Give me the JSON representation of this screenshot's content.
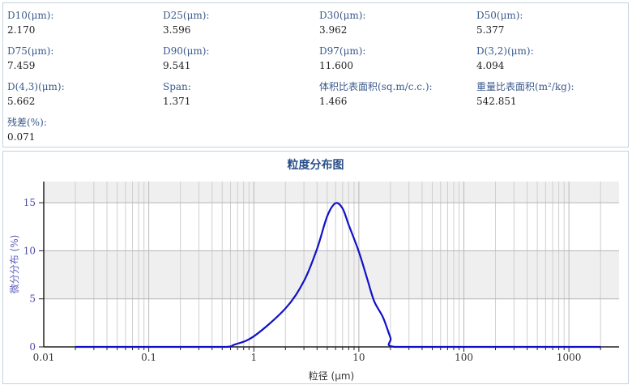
{
  "stats": [
    {
      "label": "D10(μm):",
      "value": "2.170"
    },
    {
      "label": "D25(μm):",
      "value": "3.596"
    },
    {
      "label": "D30(μm):",
      "value": "3.962"
    },
    {
      "label": "D50(μm):",
      "value": "5.377"
    },
    {
      "label": "D75(μm):",
      "value": "7.459"
    },
    {
      "label": "D90(μm):",
      "value": "9.541"
    },
    {
      "label": "D97(μm):",
      "value": "11.600"
    },
    {
      "label": "D(3,2)(μm):",
      "value": "4.094"
    },
    {
      "label": "D(4,3)(μm):",
      "value": "5.662"
    },
    {
      "label": "Span:",
      "value": "1.371"
    },
    {
      "label": "体积比表面积(sq.m/c.c.):",
      "value": "1.466"
    },
    {
      "label": "重量比表面积(m²/kg):",
      "value": "542.851"
    },
    {
      "label": "残差(%):",
      "value": "0.071"
    }
  ],
  "chart_data": {
    "type": "line",
    "title": "粒度分布图",
    "xlabel": "粒径 (μm)",
    "ylabel": "微分分布 (%)",
    "xscale": "log",
    "xlim": [
      0.01,
      3000
    ],
    "ylim": [
      0,
      17.2
    ],
    "xticks": [
      "0.01",
      "0.1",
      "1",
      "10",
      "100",
      "1000"
    ],
    "yticks": [
      "0",
      "5",
      "10",
      "15"
    ],
    "grid": true,
    "line_color": "#1010c8",
    "x": [
      0.02,
      0.1,
      0.3,
      0.55,
      0.66,
      1,
      2,
      3,
      4,
      5,
      6,
      7,
      8,
      10,
      12,
      14,
      17,
      20,
      22,
      100,
      1000,
      2000
    ],
    "y": [
      0,
      0,
      0,
      0,
      0.25,
      1.1,
      4.0,
      6.85,
      10.2,
      13.6,
      14.95,
      14.4,
      12.7,
      9.9,
      7.1,
      4.75,
      3.06,
      0.95,
      0,
      0,
      0,
      0
    ]
  }
}
